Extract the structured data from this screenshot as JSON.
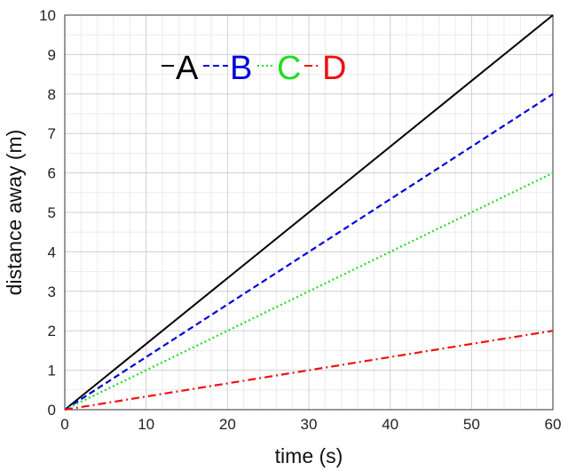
{
  "chart_data": {
    "type": "line",
    "title": "",
    "xlabel": "time (s)",
    "ylabel": "distance away (m)",
    "xlim": [
      0,
      60
    ],
    "ylim": [
      0,
      10
    ],
    "xticks": [
      "0",
      "10",
      "20",
      "30",
      "40",
      "50",
      "60"
    ],
    "yticks": [
      "0",
      "1",
      "2",
      "3",
      "4",
      "5",
      "6",
      "7",
      "8",
      "9",
      "10"
    ],
    "grid": true,
    "legend_position": "top-left",
    "series": [
      {
        "name": "A",
        "color": "#000000",
        "dash": "solid",
        "x": [
          0,
          60
        ],
        "y": [
          0,
          10
        ]
      },
      {
        "name": "B",
        "color": "#0000dd",
        "dash": "dashed",
        "x": [
          0,
          60
        ],
        "y": [
          0,
          8
        ]
      },
      {
        "name": "C",
        "color": "#22dd22",
        "dash": "dotted",
        "x": [
          0,
          60
        ],
        "y": [
          0,
          6
        ]
      },
      {
        "name": "D",
        "color": "#ee1111",
        "dash": "dashdot",
        "x": [
          0,
          60
        ],
        "y": [
          0,
          2
        ]
      }
    ]
  }
}
